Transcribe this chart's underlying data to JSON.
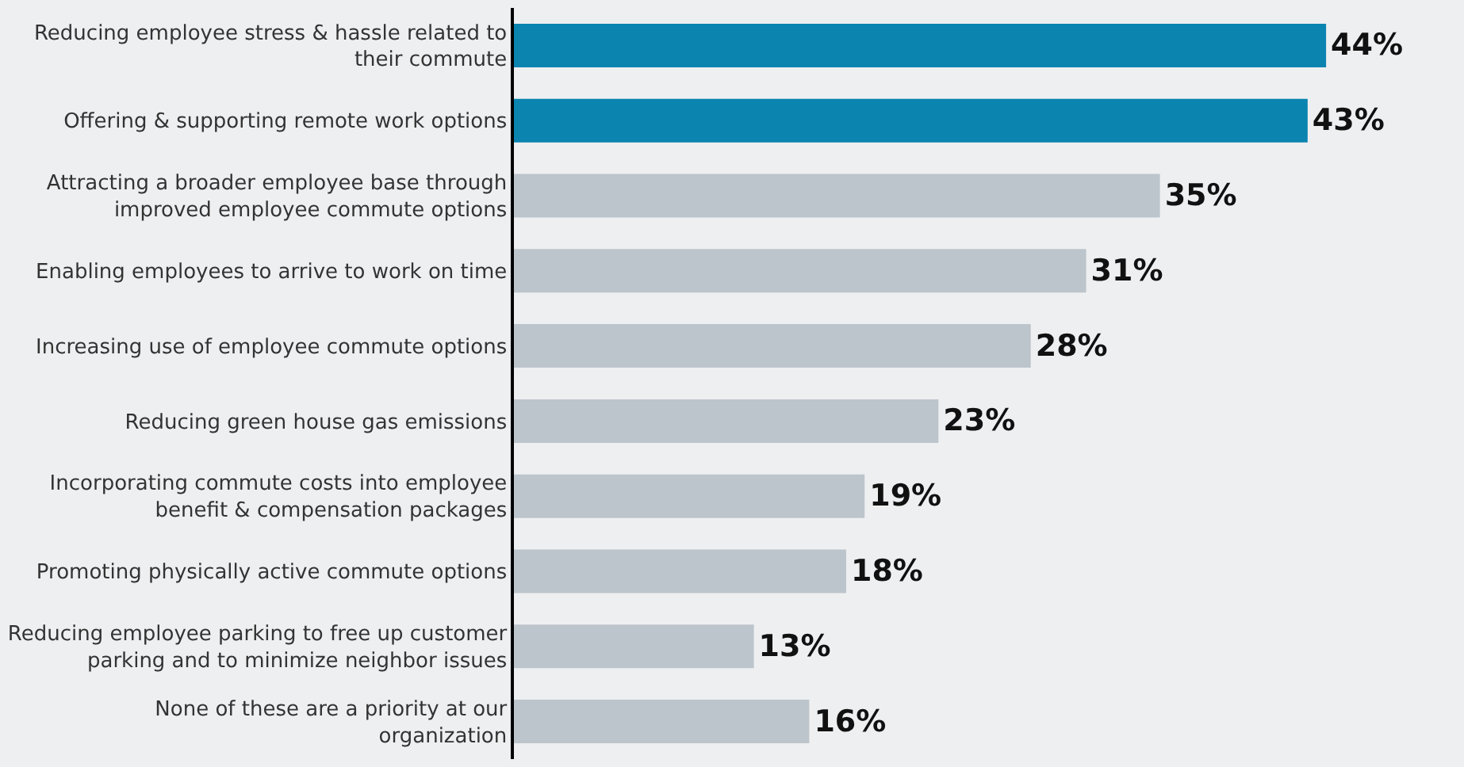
{
  "chart_data": {
    "type": "bar",
    "orientation": "horizontal",
    "categories": [
      "Reducing employee stress & hassle related to their commute",
      "Offering & supporting remote work options",
      "Attracting a broader employee base through improved employee commute options",
      "Enabling employees to arrive to work on time",
      "Increasing use of employee commute options",
      "Reducing green house gas emissions",
      "Incorporating commute costs into employee benefit & compensation packages",
      "Promoting physically active commute options",
      "Reducing employee parking to free up customer parking and to minimize neighbor issues",
      "None of these are a priority at our organization"
    ],
    "values": [
      44,
      43,
      35,
      31,
      28,
      23,
      19,
      18,
      13,
      16
    ],
    "value_labels": [
      "44%",
      "43%",
      "35%",
      "31%",
      "28%",
      "23%",
      "19%",
      "18%",
      "13%",
      "16%"
    ],
    "colors": [
      "#0b84b0",
      "#0b84b0",
      "#bcc5cb",
      "#bcc5cb",
      "#bcc5cb",
      "#bcc5cb",
      "#bcc5cb",
      "#bcc5cb",
      "#bcc5cb",
      "#bcc5cb"
    ]
  }
}
